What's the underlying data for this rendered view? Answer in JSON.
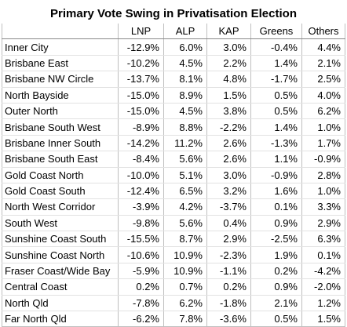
{
  "title": "Primary Vote Swing in Privatisation Election",
  "columns": [
    "",
    "LNP",
    "ALP",
    "KAP",
    "Greens",
    "Others"
  ],
  "rows": [
    {
      "region": "Inner City",
      "values": [
        "-12.9%",
        "6.0%",
        "3.0%",
        "-0.4%",
        "4.4%"
      ]
    },
    {
      "region": "Brisbane East",
      "values": [
        "-10.2%",
        "4.5%",
        "2.2%",
        "1.4%",
        "2.1%"
      ]
    },
    {
      "region": "Brisbane NW Circle",
      "values": [
        "-13.7%",
        "8.1%",
        "4.8%",
        "-1.7%",
        "2.5%"
      ]
    },
    {
      "region": "North Bayside",
      "values": [
        "-15.0%",
        "8.9%",
        "1.5%",
        "0.5%",
        "4.0%"
      ]
    },
    {
      "region": "Outer North",
      "values": [
        "-15.0%",
        "4.5%",
        "3.8%",
        "0.5%",
        "6.2%"
      ]
    },
    {
      "region": "Brisbane South West",
      "values": [
        "-8.9%",
        "8.8%",
        "-2.2%",
        "1.4%",
        "1.0%"
      ]
    },
    {
      "region": "Brisbane Inner South",
      "values": [
        "-14.2%",
        "11.2%",
        "2.6%",
        "-1.3%",
        "1.7%"
      ]
    },
    {
      "region": "Brisbane South East",
      "values": [
        "-8.4%",
        "5.6%",
        "2.6%",
        "1.1%",
        "-0.9%"
      ]
    },
    {
      "region": "Gold Coast North",
      "values": [
        "-10.0%",
        "5.1%",
        "3.0%",
        "-0.9%",
        "2.8%"
      ]
    },
    {
      "region": "Gold Coast South",
      "values": [
        "-12.4%",
        "6.5%",
        "3.2%",
        "1.6%",
        "1.0%"
      ]
    },
    {
      "region": "North West Corridor",
      "values": [
        "-3.9%",
        "4.2%",
        "-3.7%",
        "0.1%",
        "3.3%"
      ]
    },
    {
      "region": "South West",
      "values": [
        "-9.8%",
        "5.6%",
        "0.4%",
        "0.9%",
        "2.9%"
      ]
    },
    {
      "region": "Sunshine Coast South",
      "values": [
        "-15.5%",
        "8.7%",
        "2.9%",
        "-2.5%",
        "6.3%"
      ]
    },
    {
      "region": "Sunshine Coast North",
      "values": [
        "-10.6%",
        "10.9%",
        "-2.3%",
        "1.9%",
        "0.1%"
      ]
    },
    {
      "region": "Fraser Coast/Wide Bay",
      "values": [
        "-5.9%",
        "10.9%",
        "-1.1%",
        "0.2%",
        "-4.2%"
      ]
    },
    {
      "region": "Central Coast",
      "values": [
        "0.2%",
        "0.7%",
        "0.2%",
        "0.9%",
        "-2.0%"
      ]
    },
    {
      "region": "North Qld",
      "values": [
        "-7.8%",
        "6.2%",
        "-1.8%",
        "2.1%",
        "1.2%"
      ]
    },
    {
      "region": "Far North Qld",
      "values": [
        "-6.2%",
        "7.8%",
        "-3.6%",
        "0.5%",
        "1.5%"
      ]
    }
  ]
}
